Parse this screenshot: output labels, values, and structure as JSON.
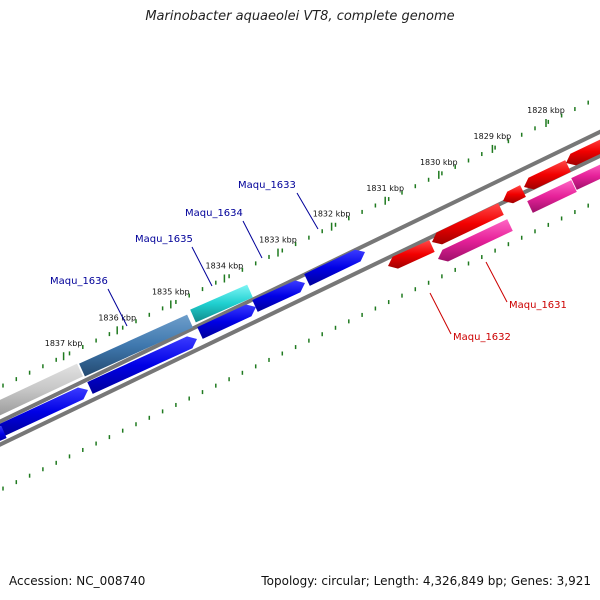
{
  "title": "Marinobacter aquaeolei VT8, complete genome",
  "accession": "Accession: NC_008740",
  "summary": "Topology: circular; Length: 4,326,849 bp; Genes: 3,921",
  "colors": {
    "tick": "#1f7a1f",
    "backbone": "#7a7a7a",
    "forward_gene": "#0000e6",
    "reverse_gene": "#f20000",
    "reverse_gene_alt": "#e62199",
    "label_forward": "#000099",
    "label_reverse": "#cc0000"
  },
  "kbp_ticks": [
    {
      "label": "1828 kbp",
      "kb": 1828
    },
    {
      "label": "1829 kbp",
      "kb": 1829
    },
    {
      "label": "1830 kbp",
      "kb": 1830
    },
    {
      "label": "1831 kbp",
      "kb": 1831
    },
    {
      "label": "1832 kbp",
      "kb": 1832
    },
    {
      "label": "1833 kbp",
      "kb": 1833
    },
    {
      "label": "1834 kbp",
      "kb": 1834
    },
    {
      "label": "1835 kbp",
      "kb": 1835
    },
    {
      "label": "1836 kbp",
      "kb": 1836
    },
    {
      "label": "1837 kbp",
      "kb": 1837
    }
  ],
  "gene_labels": [
    {
      "name": "Maqu_1633",
      "strand": "forward"
    },
    {
      "name": "Maqu_1634",
      "strand": "forward"
    },
    {
      "name": "Maqu_1635",
      "strand": "forward"
    },
    {
      "name": "Maqu_1636",
      "strand": "forward"
    },
    {
      "name": "Maqu_1631",
      "strand": "reverse"
    },
    {
      "name": "Maqu_1632",
      "strand": "reverse"
    }
  ]
}
